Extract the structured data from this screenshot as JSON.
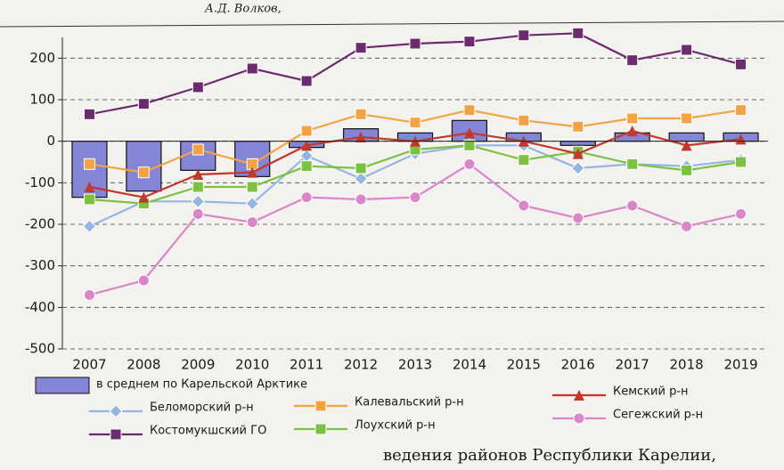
{
  "chart_data": {
    "type": "combo",
    "header": "А.Д. Волков,",
    "caption": "ведения районов Республики Карелии,",
    "categories": [
      "2007",
      "2008",
      "2009",
      "2010",
      "2011",
      "2012",
      "2013",
      "2014",
      "2015",
      "2016",
      "2017",
      "2018",
      "2019"
    ],
    "ylim": [
      -500,
      250
    ],
    "yticks": [
      -500,
      -400,
      -300,
      -200,
      -100,
      0,
      100,
      200
    ],
    "grid": true,
    "series": [
      {
        "name": "в среднем по Карельской Арктике",
        "kind": "bar",
        "color": "#8585d6",
        "values": [
          -135,
          -120,
          -70,
          -85,
          -15,
          30,
          20,
          50,
          20,
          -10,
          20,
          20,
          20
        ]
      },
      {
        "name": "Беломорский р-н",
        "kind": "line",
        "marker": "diamond",
        "color": "#93b6e2",
        "values": [
          -205,
          -145,
          -145,
          -150,
          -35,
          -90,
          -30,
          -10,
          -10,
          -65,
          -55,
          -60,
          -45
        ]
      },
      {
        "name": "Костомукшский ГО",
        "kind": "line",
        "marker": "square",
        "color": "#6a2c6e",
        "values": [
          65,
          90,
          130,
          175,
          145,
          225,
          235,
          240,
          255,
          260,
          195,
          220,
          185
        ]
      },
      {
        "name": "Калевальский р-н",
        "kind": "line",
        "marker": "square",
        "color": "#f2a444",
        "values": [
          -55,
          -75,
          -20,
          -55,
          25,
          65,
          45,
          75,
          50,
          35,
          55,
          55,
          75
        ]
      },
      {
        "name": "Лоухский р-н",
        "kind": "line",
        "marker": "square",
        "color": "#7cc142",
        "values": [
          -140,
          -150,
          -110,
          -110,
          -60,
          -65,
          -20,
          -10,
          -45,
          -25,
          -55,
          -70,
          -50
        ]
      },
      {
        "name": "Кемский р-н",
        "kind": "line",
        "marker": "triangle",
        "color": "#c0392b",
        "values": [
          -110,
          -135,
          -80,
          -75,
          -10,
          10,
          0,
          20,
          0,
          -30,
          25,
          -10,
          5
        ]
      },
      {
        "name": "Сегежский р-н",
        "kind": "line",
        "marker": "circle",
        "color": "#d987c8",
        "values": [
          -370,
          -335,
          -175,
          -195,
          -135,
          -140,
          -135,
          -55,
          -155,
          -185,
          -155,
          -205,
          -175
        ]
      }
    ]
  }
}
